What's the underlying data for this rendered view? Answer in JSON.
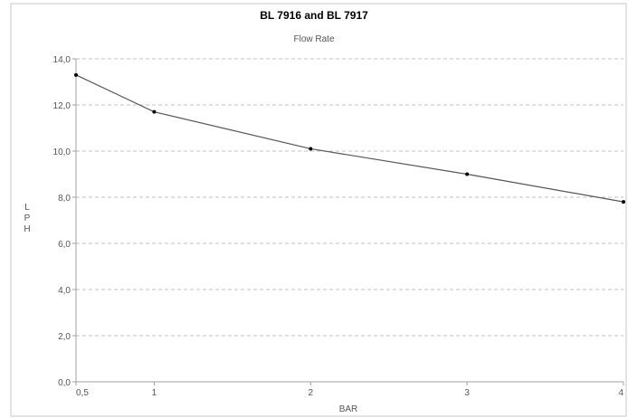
{
  "chart_data": {
    "type": "line",
    "title": "BL 7916 and BL 7917",
    "subtitle": "Flow Rate",
    "xlabel": "BAR",
    "ylabel": "L P H",
    "x_ticks": [
      "0,5",
      "1",
      "2",
      "3",
      "4"
    ],
    "y_ticks": [
      "0,0",
      "2,0",
      "4,0",
      "6,0",
      "8,0",
      "10,0",
      "12,0",
      "14,0"
    ],
    "xlim": [
      0.5,
      4
    ],
    "ylim": [
      0,
      14
    ],
    "grid": true,
    "series": [
      {
        "x": [
          0.5,
          1,
          2,
          3,
          4
        ],
        "y": [
          13.3,
          11.7,
          10.1,
          9.0,
          7.8
        ]
      }
    ],
    "colors": {
      "line": "#555555",
      "marker": "#000000",
      "grid": "#c0c0c0",
      "axis": "#a0a0a0"
    }
  }
}
